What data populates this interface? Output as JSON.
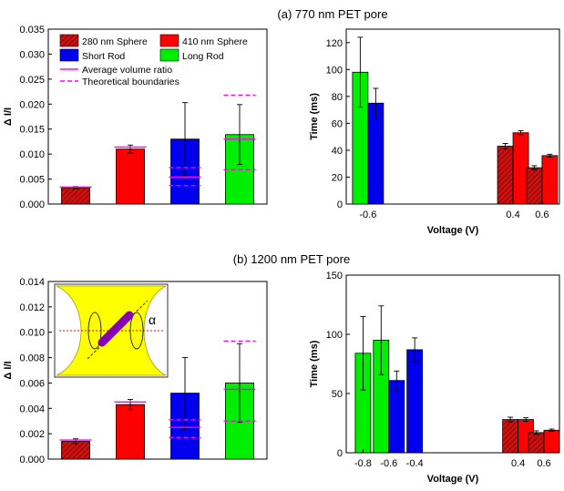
{
  "panel_titles": {
    "a": "(a)  770 nm PET pore",
    "b": "(b)  1200 nm PET pore"
  },
  "legend": {
    "sphere280": "280 nm Sphere",
    "sphere410": "410 nm Sphere",
    "short_rod": "Short Rod",
    "long_rod": "Long Rod",
    "avg_ratio": "Average volume ratio",
    "boundaries": "Theoretical boundaries"
  },
  "inset": {
    "alpha_label": "α"
  },
  "colors": {
    "sphere280": "#cc1111",
    "sphere410": "#ff0000",
    "short_rod": "#0000ee",
    "long_rod": "#00ee00",
    "ratio_line": "#ff00ff",
    "inset_bg": "#ffff00",
    "rod": "#8a00b8"
  },
  "chart_data": [
    {
      "id": "a-left",
      "type": "bar",
      "ylabel": "Δ I/I",
      "ylim": [
        0,
        0.035
      ],
      "yticks": [
        "0.000",
        "0.005",
        "0.010",
        "0.015",
        "0.020",
        "0.025",
        "0.030",
        "0.035"
      ],
      "bars": [
        {
          "key": "sphere280",
          "value": 0.0033,
          "err": 0.0002,
          "avg": 0.0034
        },
        {
          "key": "sphere410",
          "value": 0.011,
          "err": 0.0008,
          "avg": 0.0114
        },
        {
          "key": "short_rod",
          "value": 0.013,
          "err": 0.0073,
          "avg": 0.0054,
          "bounds": [
            0.0037,
            0.0073
          ]
        },
        {
          "key": "long_rod",
          "value": 0.0139,
          "err": 0.006,
          "avg": 0.013,
          "bounds": [
            0.0069,
            0.0218
          ]
        }
      ]
    },
    {
      "id": "a-right",
      "type": "bar",
      "xlabel": "Voltage (V)",
      "ylabel": "Time (ms)",
      "ylim": [
        0,
        130
      ],
      "yticks": [
        "0",
        "20",
        "40",
        "60",
        "80",
        "100",
        "120"
      ],
      "xticks": [
        {
          "label": "-0.6",
          "v": -0.6
        },
        {
          "label": "0.4",
          "v": 0.4
        },
        {
          "label": "0.6",
          "v": 0.6
        }
      ],
      "xlim": [
        -0.75,
        0.72
      ],
      "groups": [
        {
          "v": -0.6,
          "bars": [
            {
              "key": "long_rod",
              "value": 98,
              "err": 26
            },
            {
              "key": "short_rod",
              "value": 75,
              "err": 11
            }
          ]
        },
        {
          "v": 0.4,
          "bars": [
            {
              "key": "sphere280",
              "value": 43,
              "err": 2
            },
            {
              "key": "sphere410",
              "value": 53,
              "err": 1.5
            }
          ]
        },
        {
          "v": 0.6,
          "bars": [
            {
              "key": "sphere280",
              "value": 27,
              "err": 1.5
            },
            {
              "key": "sphere410",
              "value": 36,
              "err": 1
            }
          ]
        }
      ]
    },
    {
      "id": "b-left",
      "type": "bar",
      "ylabel": "Δ I/I",
      "ylim": [
        0,
        0.014
      ],
      "yticks": [
        "0.000",
        "0.002",
        "0.004",
        "0.006",
        "0.008",
        "0.010",
        "0.012",
        "0.014"
      ],
      "bars": [
        {
          "key": "sphere280",
          "value": 0.0014,
          "err": 0.0002,
          "avg": 0.0015
        },
        {
          "key": "sphere410",
          "value": 0.0043,
          "err": 0.0004,
          "avg": 0.0045
        },
        {
          "key": "short_rod",
          "value": 0.0052,
          "err": 0.0028,
          "avg": 0.0025,
          "bounds": [
            0.0017,
            0.0031
          ]
        },
        {
          "key": "long_rod",
          "value": 0.006,
          "err": 0.0031,
          "avg": 0.0055,
          "bounds": [
            0.003,
            0.0093
          ]
        }
      ]
    },
    {
      "id": "b-right",
      "type": "bar",
      "xlabel": "Voltage (V)",
      "ylabel": "Time (ms)",
      "ylim": [
        0,
        150
      ],
      "yticks": [
        "0",
        "50",
        "100",
        "150"
      ],
      "xticks": [
        {
          "label": "-0.8",
          "v": -0.8
        },
        {
          "label": "-0.6",
          "v": -0.6
        },
        {
          "label": "-0.4",
          "v": -0.4
        },
        {
          "label": "0.4",
          "v": 0.4
        },
        {
          "label": "0.6",
          "v": 0.6
        }
      ],
      "xlim": [
        -0.93,
        0.72
      ],
      "groups": [
        {
          "v": -0.8,
          "bars": [
            {
              "key": "long_rod",
              "value": 84,
              "err": 31
            }
          ]
        },
        {
          "v": -0.6,
          "bars": [
            {
              "key": "long_rod",
              "value": 95,
              "err": 29
            },
            {
              "key": "short_rod",
              "value": 61,
              "err": 8
            }
          ]
        },
        {
          "v": -0.4,
          "bars": [
            {
              "key": "short_rod",
              "value": 87,
              "err": 10
            }
          ]
        },
        {
          "v": 0.4,
          "bars": [
            {
              "key": "sphere280",
              "value": 28,
              "err": 2
            },
            {
              "key": "sphere410",
              "value": 28,
              "err": 1.5
            }
          ]
        },
        {
          "v": 0.6,
          "bars": [
            {
              "key": "sphere280",
              "value": 17,
              "err": 1.5
            },
            {
              "key": "sphere410",
              "value": 19,
              "err": 1
            }
          ]
        }
      ]
    }
  ]
}
